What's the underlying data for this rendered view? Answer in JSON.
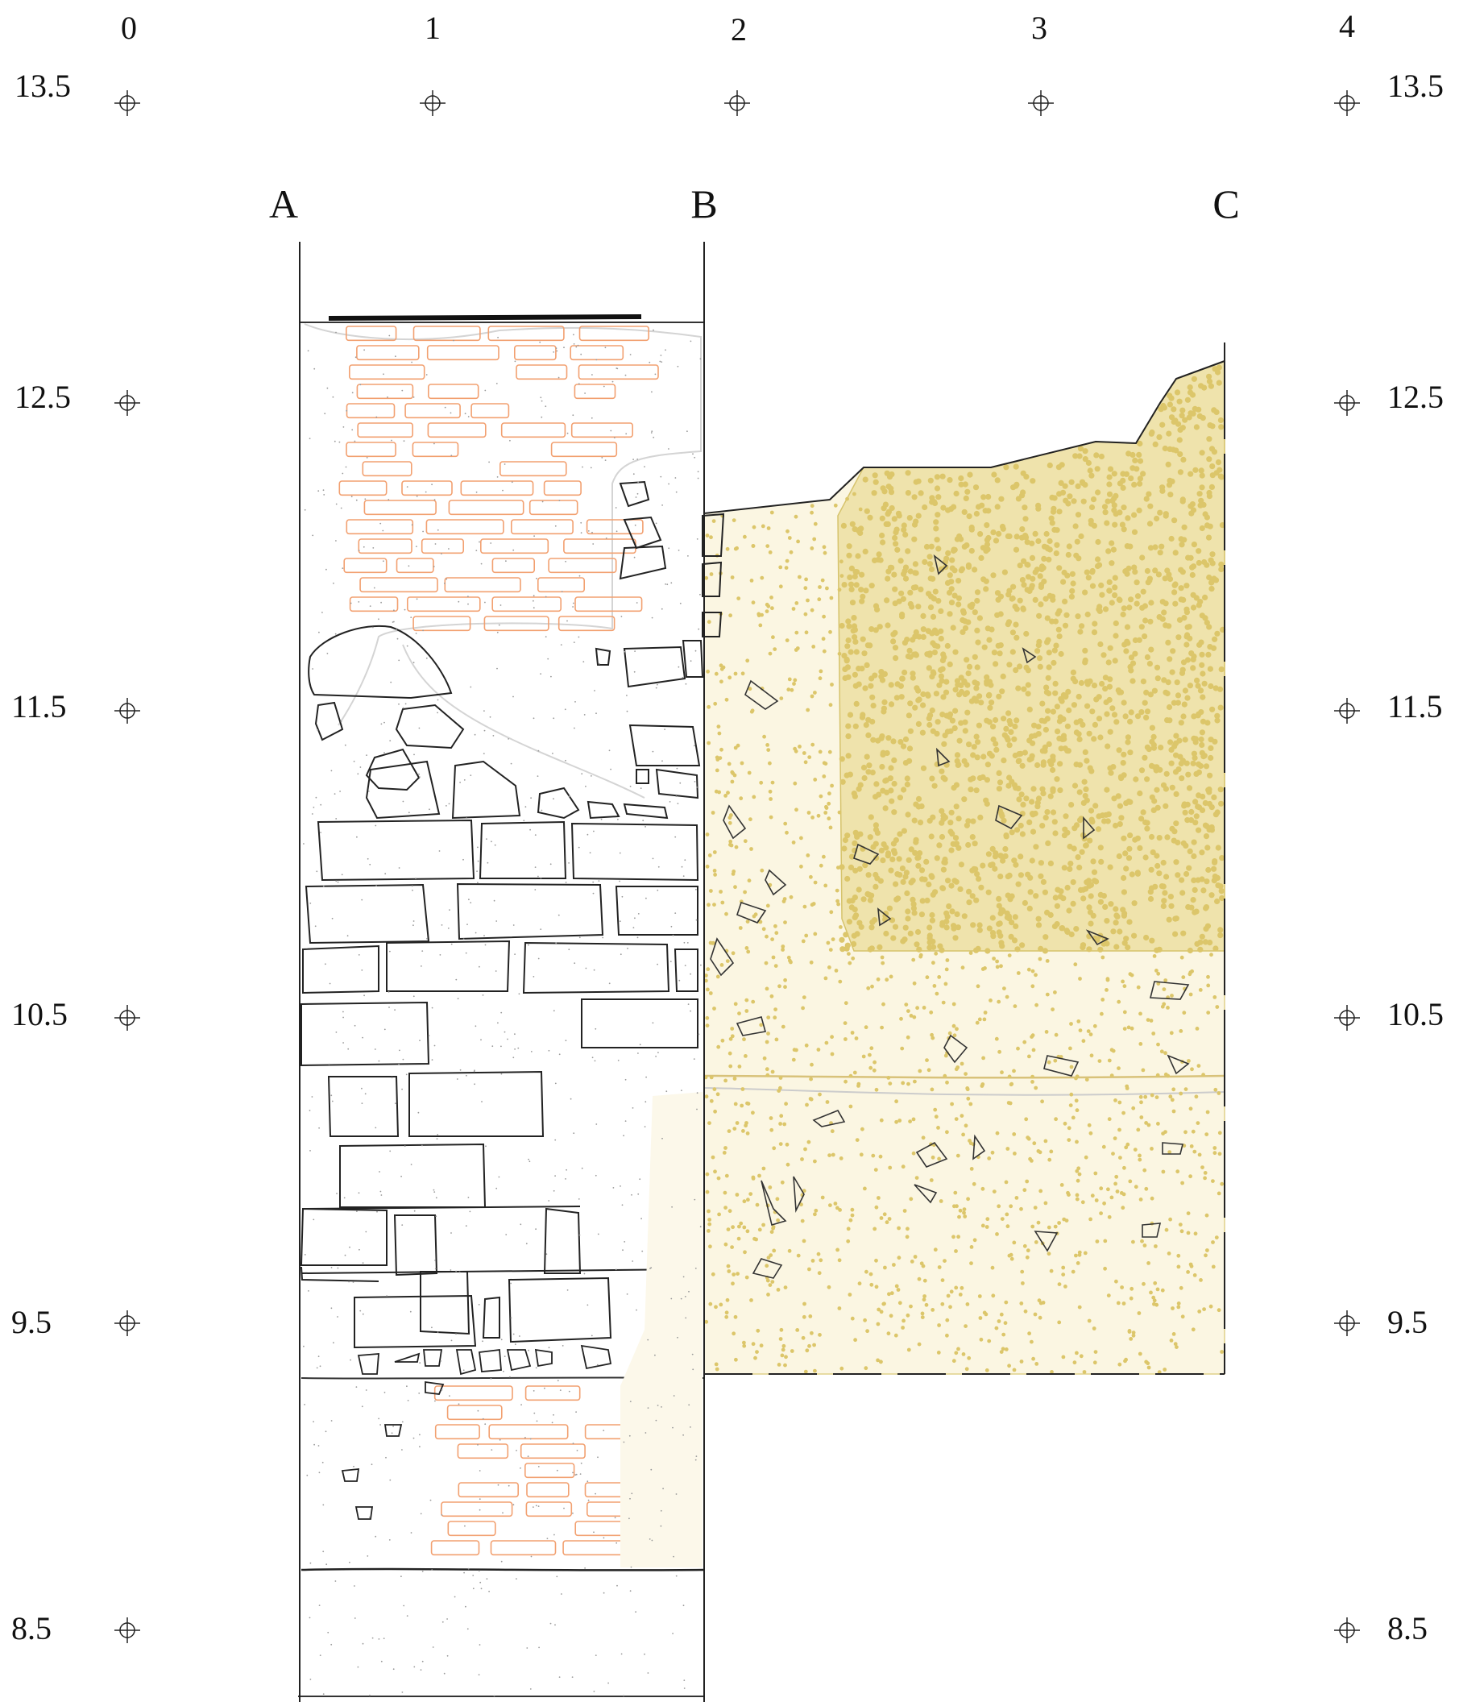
{
  "grid": {
    "x_labels": [
      "0",
      "1",
      "2",
      "3",
      "4"
    ],
    "y_labels": [
      "13.5",
      "12.5",
      "11.5",
      "10.5",
      "9.5",
      "8.5"
    ]
  },
  "section_labels": [
    "A",
    "B",
    "C"
  ],
  "colors": {
    "stone_outline": "#222222",
    "brick_outline": "#f2a070",
    "sand_fill": "#dcc66a",
    "plaster_outline": "#c8c8c8",
    "speckle": "#9a9a9a"
  },
  "icons": {
    "datum_marker": "crosshair-circle-icon"
  }
}
